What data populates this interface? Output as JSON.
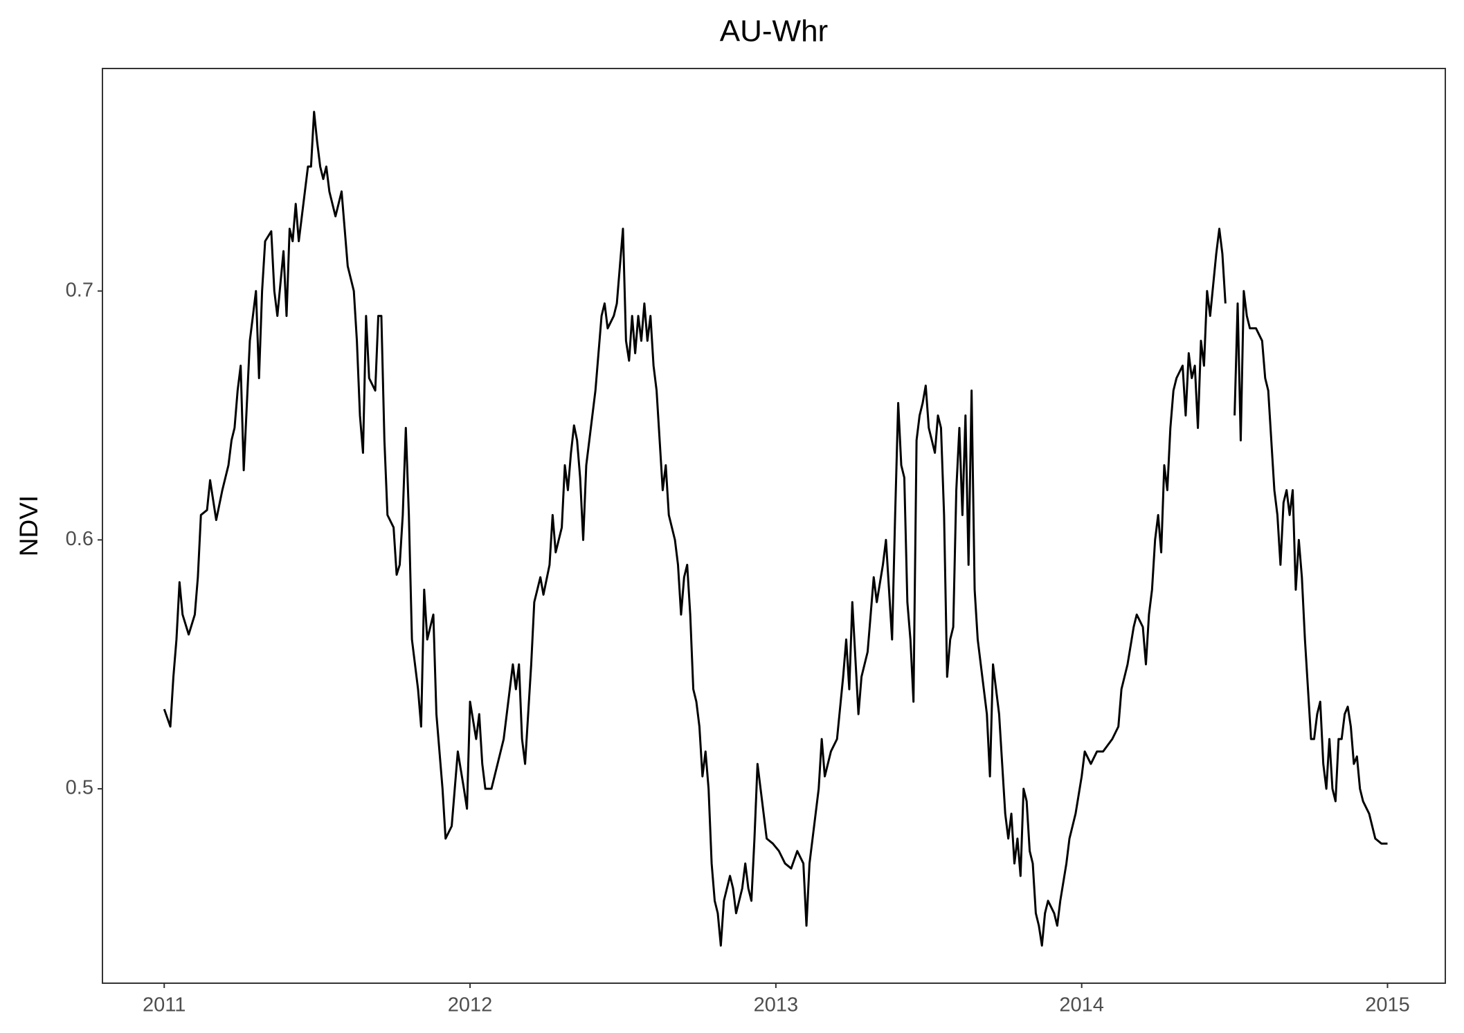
{
  "chart_data": {
    "type": "line",
    "title": "AU-Whr",
    "y_label": "NDVI",
    "xlim": [
      2010.798,
      2015.189
    ],
    "xticks": [
      2011,
      2012,
      2013,
      2014,
      2015
    ],
    "ylim": [
      0.4219,
      0.7894
    ],
    "yticks": [
      0.5,
      0.6,
      0.7
    ],
    "grid": false,
    "x": [
      2011.0,
      2011.02,
      2011.03,
      2011.04,
      2011.05,
      2011.06,
      2011.08,
      2011.1,
      2011.11,
      2011.12,
      2011.14,
      2011.15,
      2011.17,
      2011.19,
      2011.21,
      2011.22,
      2011.23,
      2011.24,
      2011.25,
      2011.26,
      2011.28,
      2011.3,
      2011.31,
      2011.32,
      2011.33,
      2011.35,
      2011.36,
      2011.37,
      2011.39,
      2011.4,
      2011.41,
      2011.42,
      2011.43,
      2011.44,
      2011.45,
      2011.46,
      2011.47,
      2011.48,
      2011.49,
      2011.5,
      2011.51,
      2011.52,
      2011.53,
      2011.54,
      2011.56,
      2011.58,
      2011.59,
      2011.6,
      2011.62,
      2011.63,
      2011.64,
      2011.65,
      2011.66,
      2011.67,
      2011.69,
      2011.7,
      2011.71,
      2011.72,
      2011.73,
      2011.75,
      2011.76,
      2011.77,
      2011.78,
      2011.79,
      2011.8,
      2011.81,
      2011.83,
      2011.84,
      2011.85,
      2011.86,
      2011.88,
      2011.89,
      2011.91,
      2011.92,
      2011.94,
      2011.95,
      2011.96,
      2011.98,
      2011.99,
      2012.0,
      2012.02,
      2012.03,
      2012.04,
      2012.05,
      2012.07,
      2012.09,
      2012.11,
      2012.13,
      2012.14,
      2012.15,
      2012.16,
      2012.17,
      2012.18,
      2012.2,
      2012.21,
      2012.23,
      2012.24,
      2012.26,
      2012.27,
      2012.28,
      2012.3,
      2012.31,
      2012.32,
      2012.33,
      2012.34,
      2012.35,
      2012.36,
      2012.37,
      2012.38,
      2012.39,
      2012.41,
      2012.42,
      2012.43,
      2012.44,
      2012.45,
      2012.47,
      2012.48,
      2012.49,
      2012.5,
      2012.51,
      2012.52,
      2012.53,
      2012.54,
      2012.55,
      2012.56,
      2012.57,
      2012.58,
      2012.59,
      2012.6,
      2012.61,
      2012.62,
      2012.63,
      2012.64,
      2012.65,
      2012.67,
      2012.68,
      2012.69,
      2012.7,
      2012.71,
      2012.72,
      2012.73,
      2012.74,
      2012.75,
      2012.76,
      2012.77,
      2012.78,
      2012.79,
      2012.8,
      2012.81,
      2012.82,
      2012.83,
      2012.85,
      2012.86,
      2012.87,
      2012.88,
      2012.89,
      2012.9,
      2012.91,
      2012.92,
      2012.93,
      2012.94,
      2012.95,
      2012.96,
      2012.97,
      2012.99,
      2013.01,
      2013.03,
      2013.05,
      2013.07,
      2013.09,
      2013.1,
      2013.11,
      2013.12,
      2013.14,
      2013.15,
      2013.16,
      2013.18,
      2013.2,
      2013.22,
      2013.23,
      2013.24,
      2013.25,
      2013.27,
      2013.28,
      2013.3,
      2013.32,
      2013.33,
      2013.35,
      2013.36,
      2013.37,
      2013.38,
      2013.39,
      2013.4,
      2013.41,
      2013.42,
      2013.43,
      2013.44,
      2013.45,
      2013.46,
      2013.47,
      2013.48,
      2013.49,
      2013.5,
      2013.51,
      2013.52,
      2013.53,
      2013.54,
      2013.55,
      2013.56,
      2013.57,
      2013.58,
      2013.59,
      2013.6,
      2013.61,
      2013.62,
      2013.63,
      2013.64,
      2013.65,
      2013.66,
      2013.67,
      2013.68,
      2013.69,
      2013.7,
      2013.71,
      2013.72,
      2013.73,
      2013.74,
      2013.75,
      2013.76,
      2013.77,
      2013.78,
      2013.79,
      2013.8,
      2013.81,
      2013.82,
      2013.83,
      2013.84,
      2013.85,
      2013.86,
      2013.87,
      2013.88,
      2013.89,
      2013.91,
      2013.92,
      2013.93,
      2013.95,
      2013.96,
      2013.98,
      2014.0,
      2014.01,
      2014.03,
      2014.05,
      2014.07,
      2014.1,
      2014.12,
      2014.13,
      2014.15,
      2014.17,
      2014.18,
      2014.2,
      2014.21,
      2014.22,
      2014.23,
      2014.24,
      2014.25,
      2014.26,
      2014.27,
      2014.28,
      2014.29,
      2014.3,
      2014.31,
      2014.33,
      2014.34,
      2014.35,
      2014.36,
      2014.37,
      2014.38,
      2014.39,
      2014.4,
      2014.41,
      2014.42,
      2014.44,
      2014.45,
      2014.46,
      2014.47,
      2014.48,
      2014.5,
      2014.51,
      2014.52,
      2014.53,
      2014.54,
      2014.55,
      2014.57,
      2014.59,
      2014.6,
      2014.61,
      2014.63,
      2014.64,
      2014.65,
      2014.66,
      2014.67,
      2014.68,
      2014.69,
      2014.7,
      2014.71,
      2014.72,
      2014.73,
      2014.74,
      2014.75,
      2014.76,
      2014.77,
      2014.78,
      2014.79,
      2014.8,
      2014.81,
      2014.82,
      2014.83,
      2014.84,
      2014.85,
      2014.86,
      2014.87,
      2014.88,
      2014.89,
      2014.9,
      2014.91,
      2014.92,
      2014.94,
      2014.95,
      2014.96,
      2014.98,
      2015.0
    ],
    "series": [
      {
        "color": "#000000",
        "values": [
          0.532,
          0.525,
          0.545,
          0.56,
          0.583,
          0.57,
          0.562,
          0.57,
          0.585,
          0.61,
          0.612,
          0.624,
          0.608,
          0.62,
          0.63,
          0.64,
          0.645,
          0.66,
          0.67,
          0.628,
          0.68,
          0.7,
          0.665,
          0.7,
          0.72,
          0.724,
          0.7,
          0.69,
          0.716,
          0.69,
          0.725,
          0.72,
          0.735,
          0.72,
          0.73,
          0.74,
          0.75,
          0.75,
          0.772,
          0.76,
          0.75,
          0.745,
          0.75,
          0.74,
          0.73,
          0.74,
          0.725,
          0.71,
          0.7,
          0.68,
          0.65,
          0.635,
          0.69,
          0.665,
          0.66,
          0.69,
          0.69,
          0.64,
          0.61,
          0.605,
          0.586,
          0.59,
          0.61,
          0.645,
          0.61,
          0.56,
          0.54,
          0.525,
          0.58,
          0.56,
          0.57,
          0.53,
          0.5,
          0.48,
          0.485,
          0.5,
          0.515,
          0.5,
          0.492,
          0.535,
          0.52,
          0.53,
          0.51,
          0.5,
          0.5,
          0.51,
          0.52,
          0.54,
          0.55,
          0.54,
          0.55,
          0.52,
          0.51,
          0.55,
          0.575,
          0.585,
          0.578,
          0.59,
          0.61,
          0.595,
          0.605,
          0.63,
          0.62,
          0.635,
          0.646,
          0.64,
          0.625,
          0.6,
          0.63,
          0.64,
          0.66,
          0.675,
          0.69,
          0.695,
          0.685,
          0.69,
          0.695,
          0.71,
          0.725,
          0.68,
          0.672,
          0.69,
          0.675,
          0.69,
          0.68,
          0.695,
          0.68,
          0.69,
          0.67,
          0.66,
          0.64,
          0.62,
          0.63,
          0.61,
          0.6,
          0.59,
          0.57,
          0.585,
          0.59,
          0.57,
          0.54,
          0.535,
          0.525,
          0.505,
          0.515,
          0.5,
          0.47,
          0.455,
          0.45,
          0.437,
          0.455,
          0.465,
          0.46,
          0.45,
          0.455,
          0.46,
          0.47,
          0.46,
          0.455,
          0.48,
          0.51,
          0.5,
          0.49,
          0.48,
          0.478,
          0.475,
          0.47,
          0.468,
          0.475,
          0.47,
          0.445,
          0.47,
          0.48,
          0.5,
          0.52,
          0.505,
          0.515,
          0.52,
          0.545,
          0.56,
          0.54,
          0.575,
          0.53,
          0.545,
          0.555,
          0.585,
          0.575,
          0.59,
          0.6,
          0.58,
          0.56,
          0.61,
          0.655,
          0.63,
          0.625,
          0.575,
          0.56,
          0.535,
          0.64,
          0.65,
          0.655,
          0.662,
          0.645,
          0.64,
          0.635,
          0.65,
          0.645,
          0.61,
          0.545,
          0.56,
          0.565,
          0.62,
          0.645,
          0.61,
          0.65,
          0.59,
          0.66,
          0.58,
          0.56,
          0.55,
          0.54,
          0.53,
          0.505,
          0.55,
          0.54,
          0.53,
          0.51,
          0.49,
          0.48,
          0.49,
          0.47,
          0.48,
          0.465,
          0.5,
          0.495,
          0.475,
          0.47,
          0.45,
          0.445,
          0.437,
          0.45,
          0.455,
          0.45,
          0.445,
          0.455,
          0.47,
          0.48,
          0.49,
          0.505,
          0.515,
          0.51,
          0.515,
          0.515,
          0.52,
          0.525,
          0.54,
          0.55,
          0.565,
          0.57,
          0.565,
          0.55,
          0.57,
          0.58,
          0.6,
          0.61,
          0.595,
          0.63,
          0.62,
          0.645,
          0.66,
          0.665,
          0.67,
          0.65,
          0.675,
          0.665,
          0.67,
          0.645,
          0.68,
          0.67,
          0.7,
          0.69,
          0.715,
          0.725,
          0.715,
          0.695,
          null,
          0.65,
          0.695,
          0.64,
          0.7,
          0.69,
          0.685,
          0.685,
          0.68,
          0.665,
          0.66,
          0.62,
          0.61,
          0.59,
          0.615,
          0.62,
          0.61,
          0.62,
          0.58,
          0.6,
          0.585,
          0.56,
          0.54,
          0.52,
          0.52,
          0.53,
          0.535,
          0.51,
          0.5,
          0.52,
          0.5,
          0.495,
          0.52,
          0.52,
          0.53,
          0.533,
          0.525,
          0.51,
          0.513,
          0.5,
          0.495,
          0.49,
          0.485,
          0.48,
          0.478,
          0.478
        ]
      }
    ]
  }
}
